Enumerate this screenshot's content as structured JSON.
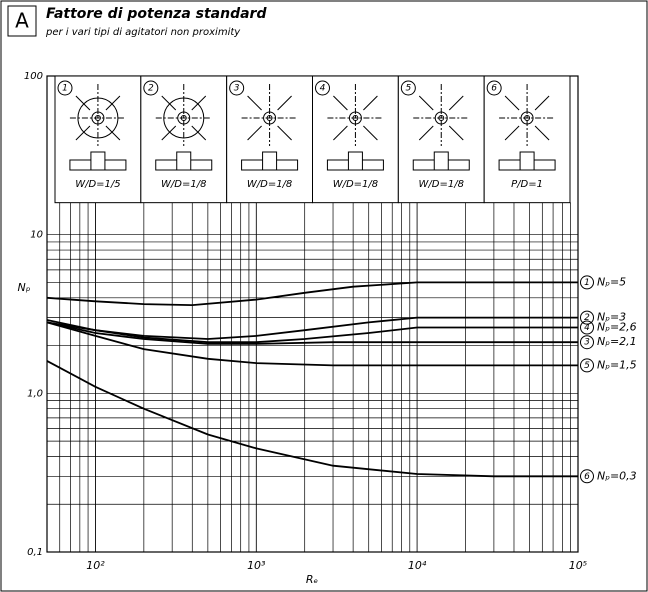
{
  "panel": "A",
  "chart_data": {
    "type": "line",
    "title": "Fattore di potenza standard",
    "subtitle": "per i vari tipi di agitatori non proximity",
    "x_label": "Rₑ",
    "y_label": "Nₚ",
    "log_x": true,
    "log_y": true,
    "grid": true,
    "xlim": [
      50,
      100000
    ],
    "ylim": [
      0.1,
      100
    ],
    "xticks": [
      {
        "value": 100,
        "label": "10²"
      },
      {
        "value": 1000,
        "label": "10³"
      },
      {
        "value": 10000,
        "label": "10⁴"
      },
      {
        "value": 100000,
        "label": "10⁵"
      }
    ],
    "yticks": [
      {
        "value": 0.1,
        "label": "0,1"
      },
      {
        "value": 1,
        "label": "1,0"
      },
      10,
      100
    ],
    "impellers": [
      {
        "id": "1",
        "ratio": "W/D=1/5"
      },
      {
        "id": "2",
        "ratio": "W/D=1/8"
      },
      {
        "id": "3",
        "ratio": "W/D=1/8"
      },
      {
        "id": "4",
        "ratio": "W/D=1/8"
      },
      {
        "id": "5",
        "ratio": "W/D=1/8"
      },
      {
        "id": "6",
        "ratio": "P/D=1"
      }
    ],
    "series": [
      {
        "id": "1",
        "name": "Nₚ=5",
        "color": "#000000",
        "x": [
          50,
          100,
          200,
          400,
          1000,
          2000,
          4000,
          10000,
          100000
        ],
        "values": [
          4.0,
          3.8,
          3.65,
          3.6,
          3.9,
          4.3,
          4.7,
          5.0,
          5.0
        ]
      },
      {
        "id": "2",
        "name": "Nₚ=3",
        "color": "#000000",
        "x": [
          50,
          100,
          200,
          500,
          1000,
          2000,
          5000,
          10000,
          100000
        ],
        "values": [
          2.8,
          2.5,
          2.3,
          2.2,
          2.3,
          2.5,
          2.8,
          3.0,
          3.0
        ]
      },
      {
        "id": "4",
        "name": "Nₚ=2,6",
        "color": "#000000",
        "x": [
          50,
          100,
          200,
          500,
          1000,
          2000,
          5000,
          10000,
          100000
        ],
        "values": [
          2.9,
          2.5,
          2.25,
          2.1,
          2.1,
          2.2,
          2.4,
          2.6,
          2.6
        ]
      },
      {
        "id": "3",
        "name": "Nₚ=2,1",
        "color": "#000000",
        "x": [
          50,
          100,
          200,
          500,
          1000,
          3000,
          100000
        ],
        "values": [
          2.8,
          2.4,
          2.2,
          2.05,
          2.05,
          2.1,
          2.1
        ]
      },
      {
        "id": "5",
        "name": "Nₚ=1,5",
        "color": "#000000",
        "x": [
          50,
          100,
          200,
          500,
          1000,
          3000,
          100000
        ],
        "values": [
          2.8,
          2.3,
          1.9,
          1.65,
          1.55,
          1.5,
          1.5
        ]
      },
      {
        "id": "6",
        "name": "Nₚ=0,3",
        "color": "#000000",
        "x": [
          50,
          100,
          200,
          500,
          1000,
          3000,
          10000,
          30000,
          100000
        ],
        "values": [
          1.6,
          1.1,
          0.8,
          0.55,
          0.45,
          0.35,
          0.31,
          0.3,
          0.3
        ]
      }
    ]
  }
}
